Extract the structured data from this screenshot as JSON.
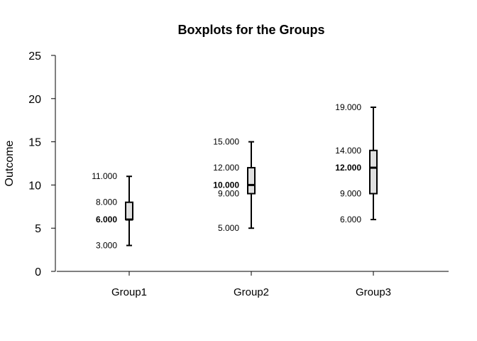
{
  "chart_data": {
    "type": "boxplot",
    "title": "Boxplots for the Groups",
    "xlabel": "",
    "ylabel": "Outcome",
    "ylim": [
      0,
      25
    ],
    "yticks": [
      0,
      5,
      10,
      15,
      20,
      25
    ],
    "grid": false,
    "box_color": "#e0e0e0",
    "groups": [
      {
        "name": "Group1",
        "min": 3,
        "q1": 6,
        "median": 6,
        "q3": 8,
        "max": 11,
        "labels": [
          {
            "value": 11,
            "text": "11.000",
            "bold": false
          },
          {
            "value": 8,
            "text": "8.000",
            "bold": false
          },
          {
            "value": 6,
            "text": "6.000",
            "bold": true
          },
          {
            "value": 3,
            "text": "3.000",
            "bold": false
          }
        ]
      },
      {
        "name": "Group2",
        "min": 5,
        "q1": 9,
        "median": 10,
        "q3": 12,
        "max": 15,
        "labels": [
          {
            "value": 15,
            "text": "15.000",
            "bold": false
          },
          {
            "value": 12,
            "text": "12.000",
            "bold": false
          },
          {
            "value": 10,
            "text": "10.000",
            "bold": true
          },
          {
            "value": 9,
            "text": "9.000",
            "bold": false
          },
          {
            "value": 5,
            "text": "5.000",
            "bold": false
          }
        ]
      },
      {
        "name": "Group3",
        "min": 6,
        "q1": 9,
        "median": 12,
        "q3": 14,
        "max": 19,
        "labels": [
          {
            "value": 19,
            "text": "19.000",
            "bold": false
          },
          {
            "value": 14,
            "text": "14.000",
            "bold": false
          },
          {
            "value": 12,
            "text": "12.000",
            "bold": true
          },
          {
            "value": 9,
            "text": "9.000",
            "bold": false
          },
          {
            "value": 6,
            "text": "6.000",
            "bold": false
          }
        ]
      }
    ]
  }
}
